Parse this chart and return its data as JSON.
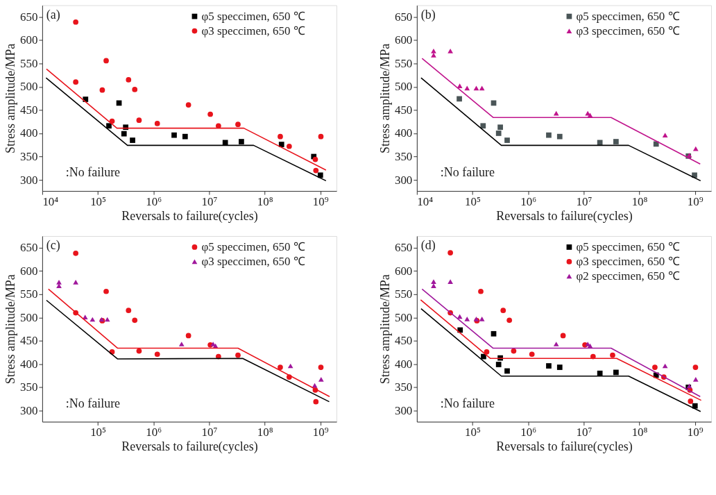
{
  "chart_data": [
    {
      "type": "scatter",
      "xlabel": "Reversals to failure(cycles)",
      "ylabel": "Stress amplitude/MPa",
      "log": "x",
      "grid": false,
      "legend": "top right",
      "xlim": [
        10000,
        1950000000
      ],
      "ylim": [
        276,
        675
      ],
      "xticks": [
        {
          "value": 10000,
          "label": "10⁴"
        },
        {
          "value": 100000,
          "label": "10⁵"
        },
        {
          "value": 1000000,
          "label": "10⁶"
        },
        {
          "value": 10000000,
          "label": "10⁷"
        },
        {
          "value": 100000000,
          "label": "10⁸"
        },
        {
          "value": 1000000000,
          "label": "10⁹"
        }
      ],
      "yticks": [
        300,
        350,
        400,
        450,
        500,
        550,
        600,
        650
      ],
      "annotations": [
        "(a)",
        ":No failure"
      ],
      "series": [
        {
          "name": "φ5 speccimen, 650 ℃",
          "color": "#000000",
          "marker": "square",
          "x": [
            60000,
            158000,
            240000,
            295000,
            316000,
            420000,
            2350000,
            3700000,
            19500000,
            38000000,
            200000000,
            760000000,
            1000000000
          ],
          "values": [
            473,
            416,
            465,
            399,
            413,
            385,
            396,
            393,
            380,
            382,
            376,
            350,
            310
          ]
        },
        {
          "name": "φ3 speccimen, 650 ℃",
          "color": "#e8141c",
          "marker": "circle",
          "x": [
            40000,
            40000,
            141000,
            120000,
            180000,
            356000,
            460000,
            550000,
            1170000,
            4250000,
            10500000,
            14700000,
            33000000,
            190000000,
            275000000,
            1020000000,
            810000000,
            830000000
          ],
          "values": [
            639,
            510,
            556,
            493,
            426,
            515,
            494,
            428,
            421,
            461,
            441,
            416,
            419,
            393,
            372,
            393,
            344,
            320
          ]
        },
        {
          "type": "line",
          "color": "#000000",
          "marker": "none",
          "x": [
            11700,
            340000,
            63000000,
            1260000000
          ],
          "values": [
            519,
            374,
            374,
            298
          ]
        },
        {
          "type": "line",
          "color": "#e8141c",
          "marker": "none",
          "x": [
            11900,
            220000,
            42000000,
            1260000000
          ],
          "values": [
            538,
            411,
            411,
            321
          ]
        }
      ]
    },
    {
      "type": "scatter",
      "xlabel": "Reversals to failure(cycles)",
      "ylabel": "Stress amplitude/MPa",
      "log": "x",
      "grid": false,
      "legend": "top right",
      "xlim": [
        10000,
        1950000000
      ],
      "ylim": [
        276,
        675
      ],
      "xticks": [
        {
          "value": 10000,
          "label": "10⁴"
        },
        {
          "value": 100000,
          "label": "10⁵"
        },
        {
          "value": 1000000,
          "label": "10⁶"
        },
        {
          "value": 10000000,
          "label": "10⁷"
        },
        {
          "value": 100000000,
          "label": "10⁸"
        },
        {
          "value": 1000000000,
          "label": "10⁹"
        }
      ],
      "yticks": [
        300,
        350,
        400,
        450,
        500,
        550,
        600,
        650
      ],
      "annotations": [
        "(b)",
        ":No failure"
      ],
      "series": [
        {
          "name": "φ5 speccimen, 650 ℃",
          "color": "#4a5557",
          "marker": "square",
          "x": [
            58000,
            155000,
            240000,
            295000,
            316000,
            420000,
            2350000,
            3700000,
            19500000,
            38000000,
            200000000,
            760000000,
            980000000
          ],
          "values": [
            474,
            416,
            465,
            400,
            413,
            385,
            396,
            393,
            380,
            382,
            377,
            351,
            310
          ]
        },
        {
          "name": "φ3 speccimen, 650 ℃",
          "color": "#c0148c",
          "marker": "triangle",
          "x": [
            20000,
            20000,
            40000,
            59000,
            80000,
            117000,
            148000,
            3200000,
            11800000,
            13000000,
            290000000,
            790000000,
            1030000000
          ],
          "values": [
            577,
            568,
            577,
            502,
            497,
            497,
            497,
            443,
            443,
            439,
            396,
            353,
            367
          ]
        },
        {
          "type": "line",
          "color": "#000000",
          "marker": "none",
          "x": [
            11900,
            330000,
            64000000,
            1260000000
          ],
          "values": [
            519,
            374,
            374,
            298
          ]
        },
        {
          "type": "line",
          "color": "#c0148c",
          "marker": "none",
          "x": [
            12400,
            235000,
            31000000,
            1240000000
          ],
          "values": [
            561,
            434,
            434,
            334
          ]
        }
      ]
    },
    {
      "type": "scatter",
      "xlabel": "Reversals to failure(cycles)",
      "ylabel": "Stress amplitude/MPa",
      "log": "x",
      "grid": false,
      "legend": "top right",
      "xlim": [
        10000,
        1950000000
      ],
      "ylim": [
        276,
        675
      ],
      "xticks": [
        {
          "value": 100000,
          "label": "10⁵"
        },
        {
          "value": 1000000,
          "label": "10⁶"
        },
        {
          "value": 10000000,
          "label": "10⁷"
        },
        {
          "value": 100000000,
          "label": "10⁸"
        },
        {
          "value": 1000000000,
          "label": "10⁹"
        }
      ],
      "yticks": [
        300,
        350,
        400,
        450,
        500,
        550,
        600,
        650
      ],
      "annotations": [
        "(c)",
        ":No failure"
      ],
      "series": [
        {
          "name": "φ5 speccimen, 650 ℃",
          "color": "#e8141c",
          "marker": "circle",
          "x": [
            40000,
            40000,
            141000,
            120000,
            180000,
            356000,
            460000,
            550000,
            1170000,
            4250000,
            10500000,
            14700000,
            33000000,
            190000000,
            275000000,
            1020000000,
            810000000,
            830000000
          ],
          "values": [
            638,
            510,
            556,
            493,
            426,
            515,
            494,
            428,
            421,
            461,
            441,
            416,
            419,
            393,
            372,
            393,
            344,
            319
          ]
        },
        {
          "name": "φ3 speccimen, 650 ℃",
          "color": "#a0189c",
          "marker": "triangle",
          "x": [
            20000,
            20000,
            40000,
            59000,
            80000,
            117000,
            148000,
            3200000,
            11800000,
            13000000,
            290000000,
            790000000,
            1030000000
          ],
          "values": [
            576,
            568,
            576,
            501,
            496,
            496,
            496,
            443,
            443,
            439,
            396,
            354,
            367
          ]
        },
        {
          "type": "line",
          "color": "#000000",
          "marker": "none",
          "x": [
            11900,
            225000,
            40000000,
            1440000000
          ],
          "values": [
            537,
            411,
            412,
            319
          ]
        },
        {
          "type": "line",
          "color": "#e8141c",
          "marker": "none",
          "x": [
            12900,
            227000,
            33000000,
            1460000000
          ],
          "values": [
            561,
            434,
            434,
            330
          ]
        }
      ]
    },
    {
      "type": "scatter",
      "xlabel": "Reversals to failure(cycles)",
      "ylabel": "Stress amplitude/MPa",
      "log": "x",
      "grid": false,
      "legend": "top right",
      "xlim": [
        10000,
        1950000000
      ],
      "ylim": [
        276,
        675
      ],
      "xticks": [
        {
          "value": 100000,
          "label": "10⁵"
        },
        {
          "value": 1000000,
          "label": "10⁶"
        },
        {
          "value": 10000000,
          "label": "10⁷"
        },
        {
          "value": 100000000,
          "label": "10⁸"
        },
        {
          "value": 1000000000,
          "label": "10⁹"
        }
      ],
      "yticks": [
        300,
        350,
        400,
        450,
        500,
        550,
        600,
        650
      ],
      "annotations": [
        "(d)",
        ":No failure"
      ],
      "series": [
        {
          "name": "φ5 speccimen, 650 ℃",
          "color": "#000000",
          "marker": "square",
          "x": [
            60000,
            158000,
            240000,
            295000,
            316000,
            420000,
            2350000,
            3700000,
            19500000,
            38000000,
            200000000,
            760000000,
            1000000000
          ],
          "values": [
            473,
            416,
            465,
            399,
            413,
            385,
            396,
            393,
            380,
            382,
            376,
            350,
            310
          ]
        },
        {
          "name": "φ3 speccimen, 650 ℃",
          "color": "#e8141c",
          "marker": "circle",
          "x": [
            40000,
            40000,
            141000,
            120000,
            180000,
            356000,
            460000,
            550000,
            1170000,
            4250000,
            10500000,
            14700000,
            33000000,
            190000000,
            275000000,
            1020000000,
            810000000,
            830000000
          ],
          "values": [
            639,
            510,
            556,
            493,
            426,
            515,
            494,
            428,
            421,
            461,
            441,
            416,
            419,
            393,
            372,
            393,
            344,
            320
          ]
        },
        {
          "name": "φ2 speccimen, 650 ℃",
          "color": "#a0189c",
          "marker": "triangle",
          "x": [
            20000,
            20000,
            40000,
            59000,
            80000,
            117000,
            148000,
            3200000,
            11800000,
            13000000,
            290000000,
            790000000,
            1030000000
          ],
          "values": [
            577,
            568,
            577,
            502,
            497,
            497,
            497,
            443,
            443,
            439,
            396,
            353,
            367
          ]
        },
        {
          "type": "line",
          "color": "#000000",
          "marker": "none",
          "x": [
            11900,
            330000,
            64000000,
            1260000000
          ],
          "values": [
            519,
            374,
            374,
            298
          ]
        },
        {
          "type": "line",
          "color": "#e8141c",
          "marker": "none",
          "x": [
            11700,
            210000,
            39000000,
            1290000000
          ],
          "values": [
            538,
            412,
            412,
            322
          ]
        },
        {
          "type": "line",
          "color": "#a0189c",
          "marker": "none",
          "x": [
            12400,
            235000,
            31000000,
            1240000000
          ],
          "values": [
            561,
            434,
            434,
            330
          ]
        }
      ]
    }
  ]
}
